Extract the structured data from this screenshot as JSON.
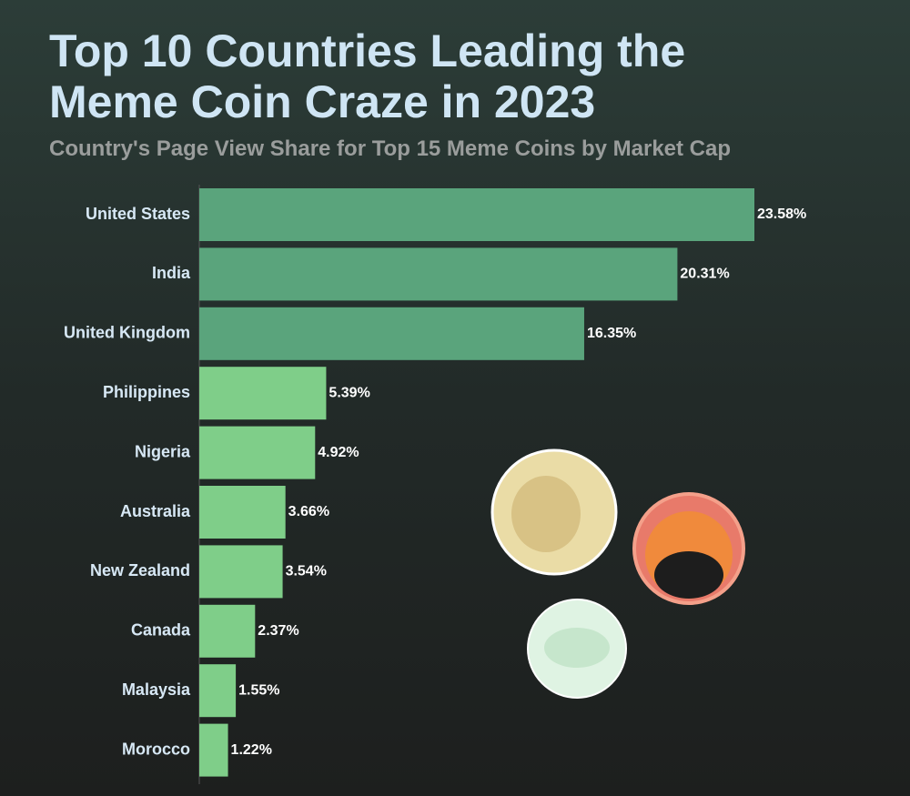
{
  "chart_data": {
    "type": "bar",
    "orientation": "horizontal",
    "title": "Top 10 Countries Leading the Meme Coin Craze in 2023",
    "subtitle": "Country's Page View Share for Top 15 Meme Coins by Market Cap",
    "categories": [
      "United States",
      "India",
      "United Kingdom",
      "Philippines",
      "Nigeria",
      "Australia",
      "New Zealand",
      "Canada",
      "Malaysia",
      "Morocco"
    ],
    "values": [
      23.58,
      20.31,
      16.35,
      5.39,
      4.92,
      3.66,
      3.54,
      2.37,
      1.55,
      1.22
    ],
    "value_labels": [
      "23.58%",
      "20.31%",
      "16.35%",
      "5.39%",
      "4.92%",
      "3.66%",
      "3.54%",
      "2.37%",
      "1.55%",
      "1.22%"
    ],
    "colors": [
      "#5aa47c",
      "#5aa47c",
      "#5aa47c",
      "#7fce89",
      "#7fce89",
      "#7fce89",
      "#7fce89",
      "#7fce89",
      "#7fce89",
      "#7fce89"
    ]
  }
}
